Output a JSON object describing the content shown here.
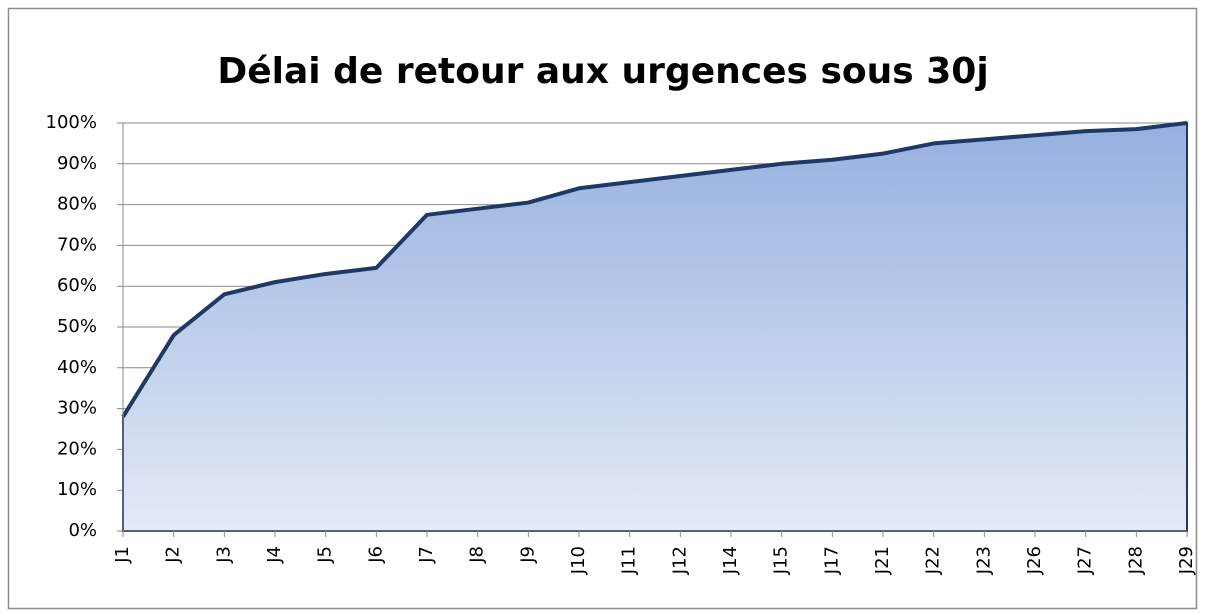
{
  "chart_data": {
    "type": "area",
    "title": "Délai de retour aux urgences sous 30j",
    "categories": [
      "J1",
      "J2",
      "J3",
      "J4",
      "J5",
      "J6",
      "J7",
      "J8",
      "J9",
      "J10",
      "J11",
      "J12",
      "J14",
      "J15",
      "J17",
      "J21",
      "J22",
      "J23",
      "J26",
      "J27",
      "J28",
      "J29"
    ],
    "values": [
      28,
      48,
      58,
      61,
      63,
      64.5,
      77.5,
      79,
      80.5,
      84,
      85.5,
      87,
      88.5,
      90,
      91,
      92.5,
      95,
      96,
      97,
      98,
      98.5,
      100
    ],
    "color": "#1f3864",
    "ylim": [
      0,
      100
    ],
    "yticks": [
      {
        "value": 0,
        "label": "0%"
      },
      {
        "value": 10,
        "label": "10%"
      },
      {
        "value": 20,
        "label": "20%"
      },
      {
        "value": 30,
        "label": "30%"
      },
      {
        "value": 40,
        "label": "40%"
      },
      {
        "value": 50,
        "label": "50%"
      },
      {
        "value": 60,
        "label": "60%"
      },
      {
        "value": 70,
        "label": "70%"
      },
      {
        "value": 80,
        "label": "80%"
      },
      {
        "value": 90,
        "label": "90%"
      },
      {
        "value": 100,
        "label": "100%"
      }
    ],
    "grid": true
  }
}
